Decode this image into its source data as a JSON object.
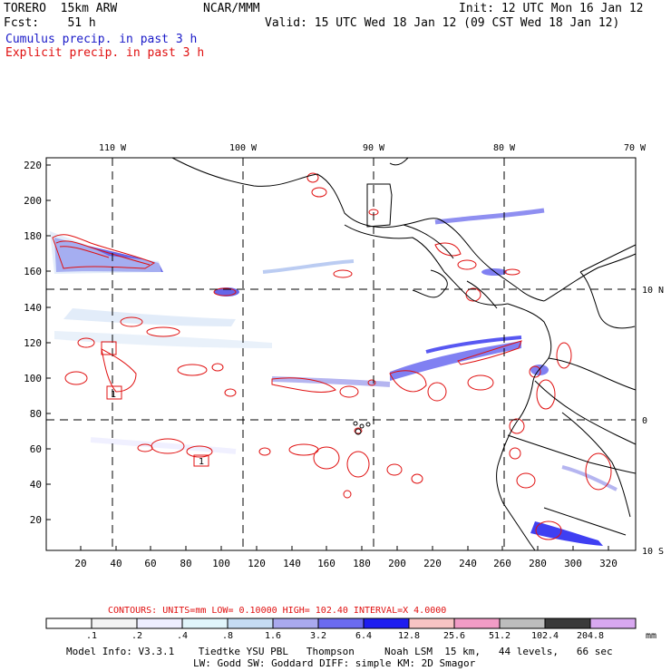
{
  "header": {
    "model_title": "TORERO  15km ARW",
    "forecast": "Fcst:    51 h",
    "center": "NCAR/MMM",
    "init": "Init: 12 UTC Mon 16 Jan 12",
    "valid": "Valid: 15 UTC Wed 18 Jan 12 (09 CST Wed 18 Jan 12)",
    "cumulus_label": "Cumulus precip. in past 3 h",
    "explicit_label": "Explicit precip. in past 3 h"
  },
  "map": {
    "top_lon_labels": [
      "110 W",
      "100 W",
      "90 W",
      "80 W",
      "70 W"
    ],
    "right_lat_labels": [
      "10 N",
      "0",
      "10 S"
    ],
    "left_y_ticks": [
      "220",
      "200",
      "180",
      "160",
      "140",
      "120",
      "100",
      "80",
      "60",
      "40",
      "20"
    ],
    "bottom_x_ticks": [
      "20",
      "40",
      "60",
      "80",
      "100",
      "120",
      "140",
      "160",
      "180",
      "200",
      "220",
      "240",
      "260",
      "280",
      "300",
      "320"
    ],
    "box_labels": [
      "1",
      "1"
    ]
  },
  "footer": {
    "contour_line": "CONTOURS:  UNITS=mm  LOW= 0.10000      HIGH=  102.40      INTERVAL=X  4.0000",
    "colorbar_labels": [
      ".1",
      ".2",
      ".4",
      ".8",
      "1.6",
      "3.2",
      "6.4",
      "12.8",
      "25.6",
      "51.2",
      "102.4",
      "204.8"
    ],
    "colorbar_unit": "mm",
    "colorbar_colors": [
      "#ffffff",
      "#f3f3f3",
      "#eeeeff",
      "#e1f5fb",
      "#c5dcf3",
      "#a9a9ee",
      "#6b6bf0",
      "#1e1ef0",
      "#f8c4c4",
      "#f29cc6",
      "#bdbdbd",
      "#3a3a3a",
      "#d8a8f0"
    ],
    "info_line1": "Model Info: V3.3.1    Tiedtke YSU PBL   Thompson     Noah LSM  15 km,   44 levels,   66 sec",
    "info_line2": "LW: Godd SW: Goddard DIFF: simple KM: 2D Smagor"
  }
}
